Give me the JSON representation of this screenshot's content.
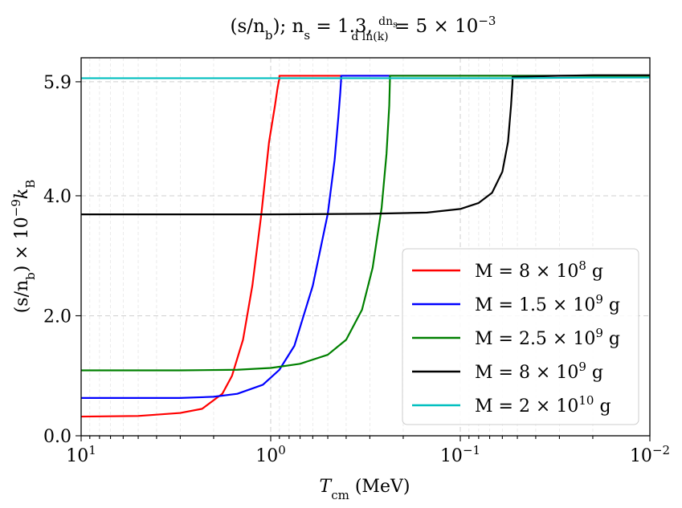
{
  "chart_data": {
    "type": "line",
    "title": "(s/n_b); n_s = 1.3, dn_s/dln(k) = 5 × 10⁻³",
    "title_parts": {
      "lhs": "(s/n",
      "lhs_sub": "b",
      "mid": "); n",
      "ns_sub": "s",
      "ns_value": " = 1.3, ",
      "frac_num": "dn",
      "frac_num_sub": "s",
      "frac_den": "d ln(k)",
      "rhs": " = 5 × 10",
      "rhs_exp": "−3"
    },
    "xlabel": "T_cm (MeV)",
    "xlabel_parts": {
      "main": "T",
      "sub": "cm",
      "unit": " (MeV)"
    },
    "ylabel": "(s/n_b) × 10⁻⁹ k_B",
    "ylabel_parts": {
      "a": "(s/n",
      "a_sub": "b",
      "b": ") × 10",
      "b_exp": "−9",
      "c": "k",
      "c_sub": "B"
    },
    "x_scale": "log",
    "x_inverted": true,
    "xlim": [
      10,
      0.01
    ],
    "ylim": [
      0,
      6.3
    ],
    "x_ticks": [
      {
        "value": 10,
        "base": "10",
        "exp": "1"
      },
      {
        "value": 1,
        "base": "10",
        "exp": "0"
      },
      {
        "value": 0.1,
        "base": "10",
        "exp": "−1"
      },
      {
        "value": 0.01,
        "base": "10",
        "exp": "−2"
      }
    ],
    "y_ticks": [
      {
        "value": 0.0,
        "label": "0.0"
      },
      {
        "value": 2.0,
        "label": "2.0"
      },
      {
        "value": 4.0,
        "label": "4.0"
      },
      {
        "value": 5.9,
        "label": "5.9"
      }
    ],
    "grid": true,
    "legend_position": "lower-right",
    "series": [
      {
        "name": "M = 8 × 10^8 g",
        "label_main": "M = 8 × 10",
        "label_exp": "8",
        "label_unit": " g",
        "color": "#ff0000",
        "x": [
          10,
          5,
          3,
          2.3,
          1.8,
          1.6,
          1.4,
          1.25,
          1.12,
          1.02,
          0.95,
          0.92,
          0.905,
          0.9,
          0.9,
          0.5,
          0.2,
          0.1,
          0.05,
          0.02,
          0.01
        ],
        "y": [
          0.32,
          0.33,
          0.38,
          0.45,
          0.7,
          1.0,
          1.6,
          2.5,
          3.7,
          4.9,
          5.5,
          5.8,
          5.92,
          5.94,
          6.0,
          6.0,
          6.0,
          6.0,
          6.0,
          6.0,
          6.0
        ]
      },
      {
        "name": "M = 1.5 × 10^9 g",
        "label_main": "M = 1.5 × 10",
        "label_exp": "9",
        "label_unit": " g",
        "color": "#0000ff",
        "x": [
          10,
          3,
          2,
          1.5,
          1.1,
          0.9,
          0.75,
          0.6,
          0.5,
          0.46,
          0.44,
          0.43,
          0.425,
          0.425,
          0.2,
          0.1,
          0.05,
          0.02,
          0.01
        ],
        "y": [
          0.63,
          0.63,
          0.65,
          0.7,
          0.85,
          1.1,
          1.5,
          2.5,
          3.7,
          4.6,
          5.3,
          5.7,
          5.95,
          6.0,
          6.0,
          6.0,
          6.0,
          6.0,
          6.0
        ]
      },
      {
        "name": "M = 2.5 × 10^9 g",
        "label_main": "M = 2.5 × 10",
        "label_exp": "9",
        "label_unit": " g",
        "color": "#008000",
        "x": [
          10,
          3,
          1.5,
          1.0,
          0.7,
          0.5,
          0.4,
          0.33,
          0.29,
          0.26,
          0.245,
          0.237,
          0.235,
          0.235,
          0.1,
          0.05,
          0.02,
          0.01
        ],
        "y": [
          1.09,
          1.09,
          1.1,
          1.13,
          1.2,
          1.35,
          1.6,
          2.1,
          2.8,
          3.8,
          4.7,
          5.5,
          5.95,
          6.0,
          6.0,
          6.0,
          6.0,
          6.0
        ]
      },
      {
        "name": "M = 8 × 10^9 g",
        "label_main": "M = 8 × 10",
        "label_exp": "9",
        "label_unit": " g",
        "color": "#000000",
        "x": [
          10,
          1,
          0.3,
          0.15,
          0.1,
          0.08,
          0.068,
          0.06,
          0.056,
          0.054,
          0.053,
          0.053,
          0.03,
          0.02,
          0.01
        ],
        "y": [
          3.69,
          3.69,
          3.7,
          3.72,
          3.78,
          3.88,
          4.05,
          4.4,
          4.9,
          5.5,
          5.9,
          5.98,
          6.0,
          6.01,
          6.01
        ]
      },
      {
        "name": "M = 2 × 10^10 g",
        "label_main": "M = 2 × 10",
        "label_exp": "10",
        "label_unit": " g",
        "color": "#00bfbf",
        "x": [
          10,
          1,
          0.1,
          0.05,
          0.02,
          0.01
        ],
        "y": [
          5.96,
          5.96,
          5.96,
          5.96,
          5.97,
          5.97
        ]
      }
    ]
  }
}
